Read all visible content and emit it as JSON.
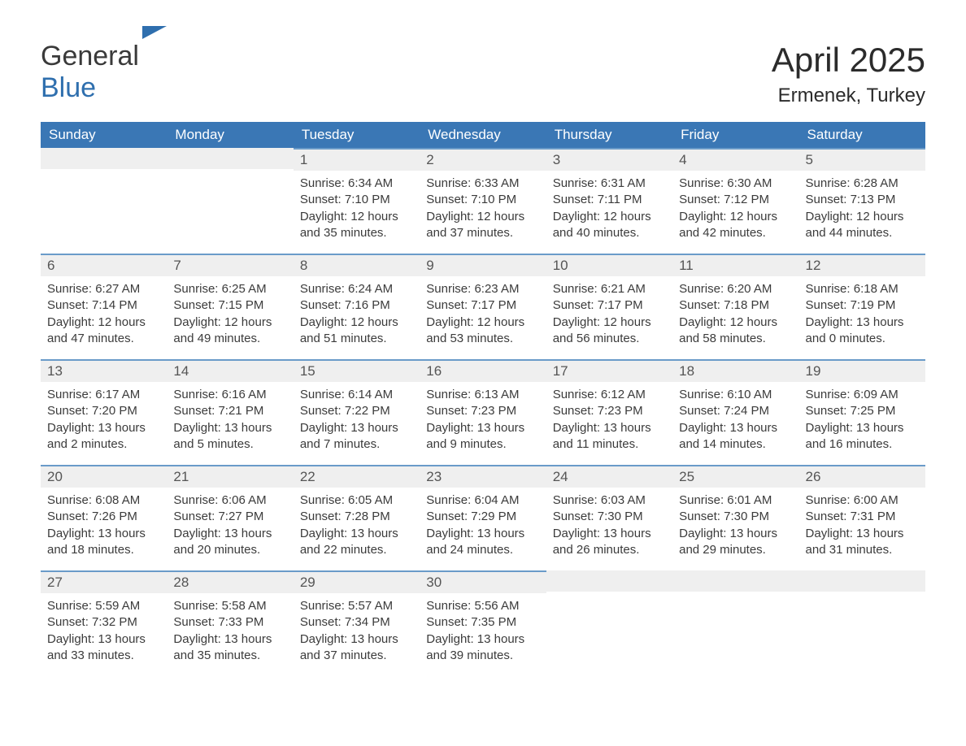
{
  "brand": {
    "part1": "General",
    "part2": "Blue"
  },
  "title": "April 2025",
  "location": "Ermenek, Turkey",
  "colors": {
    "header_bg": "#3a77b5",
    "header_text": "#ffffff",
    "daynum_bg": "#efefef",
    "daynum_border": "#6a9bc9",
    "body_text": "#3b3b3b",
    "logo_blue": "#2f6fae"
  },
  "columns": [
    "Sunday",
    "Monday",
    "Tuesday",
    "Wednesday",
    "Thursday",
    "Friday",
    "Saturday"
  ],
  "labels": {
    "sunrise": "Sunrise:",
    "sunset": "Sunset:",
    "daylight": "Daylight:"
  },
  "weeks": [
    [
      null,
      null,
      {
        "n": "1",
        "sr": "6:34 AM",
        "ss": "7:10 PM",
        "dl": "12 hours and 35 minutes."
      },
      {
        "n": "2",
        "sr": "6:33 AM",
        "ss": "7:10 PM",
        "dl": "12 hours and 37 minutes."
      },
      {
        "n": "3",
        "sr": "6:31 AM",
        "ss": "7:11 PM",
        "dl": "12 hours and 40 minutes."
      },
      {
        "n": "4",
        "sr": "6:30 AM",
        "ss": "7:12 PM",
        "dl": "12 hours and 42 minutes."
      },
      {
        "n": "5",
        "sr": "6:28 AM",
        "ss": "7:13 PM",
        "dl": "12 hours and 44 minutes."
      }
    ],
    [
      {
        "n": "6",
        "sr": "6:27 AM",
        "ss": "7:14 PM",
        "dl": "12 hours and 47 minutes."
      },
      {
        "n": "7",
        "sr": "6:25 AM",
        "ss": "7:15 PM",
        "dl": "12 hours and 49 minutes."
      },
      {
        "n": "8",
        "sr": "6:24 AM",
        "ss": "7:16 PM",
        "dl": "12 hours and 51 minutes."
      },
      {
        "n": "9",
        "sr": "6:23 AM",
        "ss": "7:17 PM",
        "dl": "12 hours and 53 minutes."
      },
      {
        "n": "10",
        "sr": "6:21 AM",
        "ss": "7:17 PM",
        "dl": "12 hours and 56 minutes."
      },
      {
        "n": "11",
        "sr": "6:20 AM",
        "ss": "7:18 PM",
        "dl": "12 hours and 58 minutes."
      },
      {
        "n": "12",
        "sr": "6:18 AM",
        "ss": "7:19 PM",
        "dl": "13 hours and 0 minutes."
      }
    ],
    [
      {
        "n": "13",
        "sr": "6:17 AM",
        "ss": "7:20 PM",
        "dl": "13 hours and 2 minutes."
      },
      {
        "n": "14",
        "sr": "6:16 AM",
        "ss": "7:21 PM",
        "dl": "13 hours and 5 minutes."
      },
      {
        "n": "15",
        "sr": "6:14 AM",
        "ss": "7:22 PM",
        "dl": "13 hours and 7 minutes."
      },
      {
        "n": "16",
        "sr": "6:13 AM",
        "ss": "7:23 PM",
        "dl": "13 hours and 9 minutes."
      },
      {
        "n": "17",
        "sr": "6:12 AM",
        "ss": "7:23 PM",
        "dl": "13 hours and 11 minutes."
      },
      {
        "n": "18",
        "sr": "6:10 AM",
        "ss": "7:24 PM",
        "dl": "13 hours and 14 minutes."
      },
      {
        "n": "19",
        "sr": "6:09 AM",
        "ss": "7:25 PM",
        "dl": "13 hours and 16 minutes."
      }
    ],
    [
      {
        "n": "20",
        "sr": "6:08 AM",
        "ss": "7:26 PM",
        "dl": "13 hours and 18 minutes."
      },
      {
        "n": "21",
        "sr": "6:06 AM",
        "ss": "7:27 PM",
        "dl": "13 hours and 20 minutes."
      },
      {
        "n": "22",
        "sr": "6:05 AM",
        "ss": "7:28 PM",
        "dl": "13 hours and 22 minutes."
      },
      {
        "n": "23",
        "sr": "6:04 AM",
        "ss": "7:29 PM",
        "dl": "13 hours and 24 minutes."
      },
      {
        "n": "24",
        "sr": "6:03 AM",
        "ss": "7:30 PM",
        "dl": "13 hours and 26 minutes."
      },
      {
        "n": "25",
        "sr": "6:01 AM",
        "ss": "7:30 PM",
        "dl": "13 hours and 29 minutes."
      },
      {
        "n": "26",
        "sr": "6:00 AM",
        "ss": "7:31 PM",
        "dl": "13 hours and 31 minutes."
      }
    ],
    [
      {
        "n": "27",
        "sr": "5:59 AM",
        "ss": "7:32 PM",
        "dl": "13 hours and 33 minutes."
      },
      {
        "n": "28",
        "sr": "5:58 AM",
        "ss": "7:33 PM",
        "dl": "13 hours and 35 minutes."
      },
      {
        "n": "29",
        "sr": "5:57 AM",
        "ss": "7:34 PM",
        "dl": "13 hours and 37 minutes."
      },
      {
        "n": "30",
        "sr": "5:56 AM",
        "ss": "7:35 PM",
        "dl": "13 hours and 39 minutes."
      },
      null,
      null,
      null
    ]
  ]
}
